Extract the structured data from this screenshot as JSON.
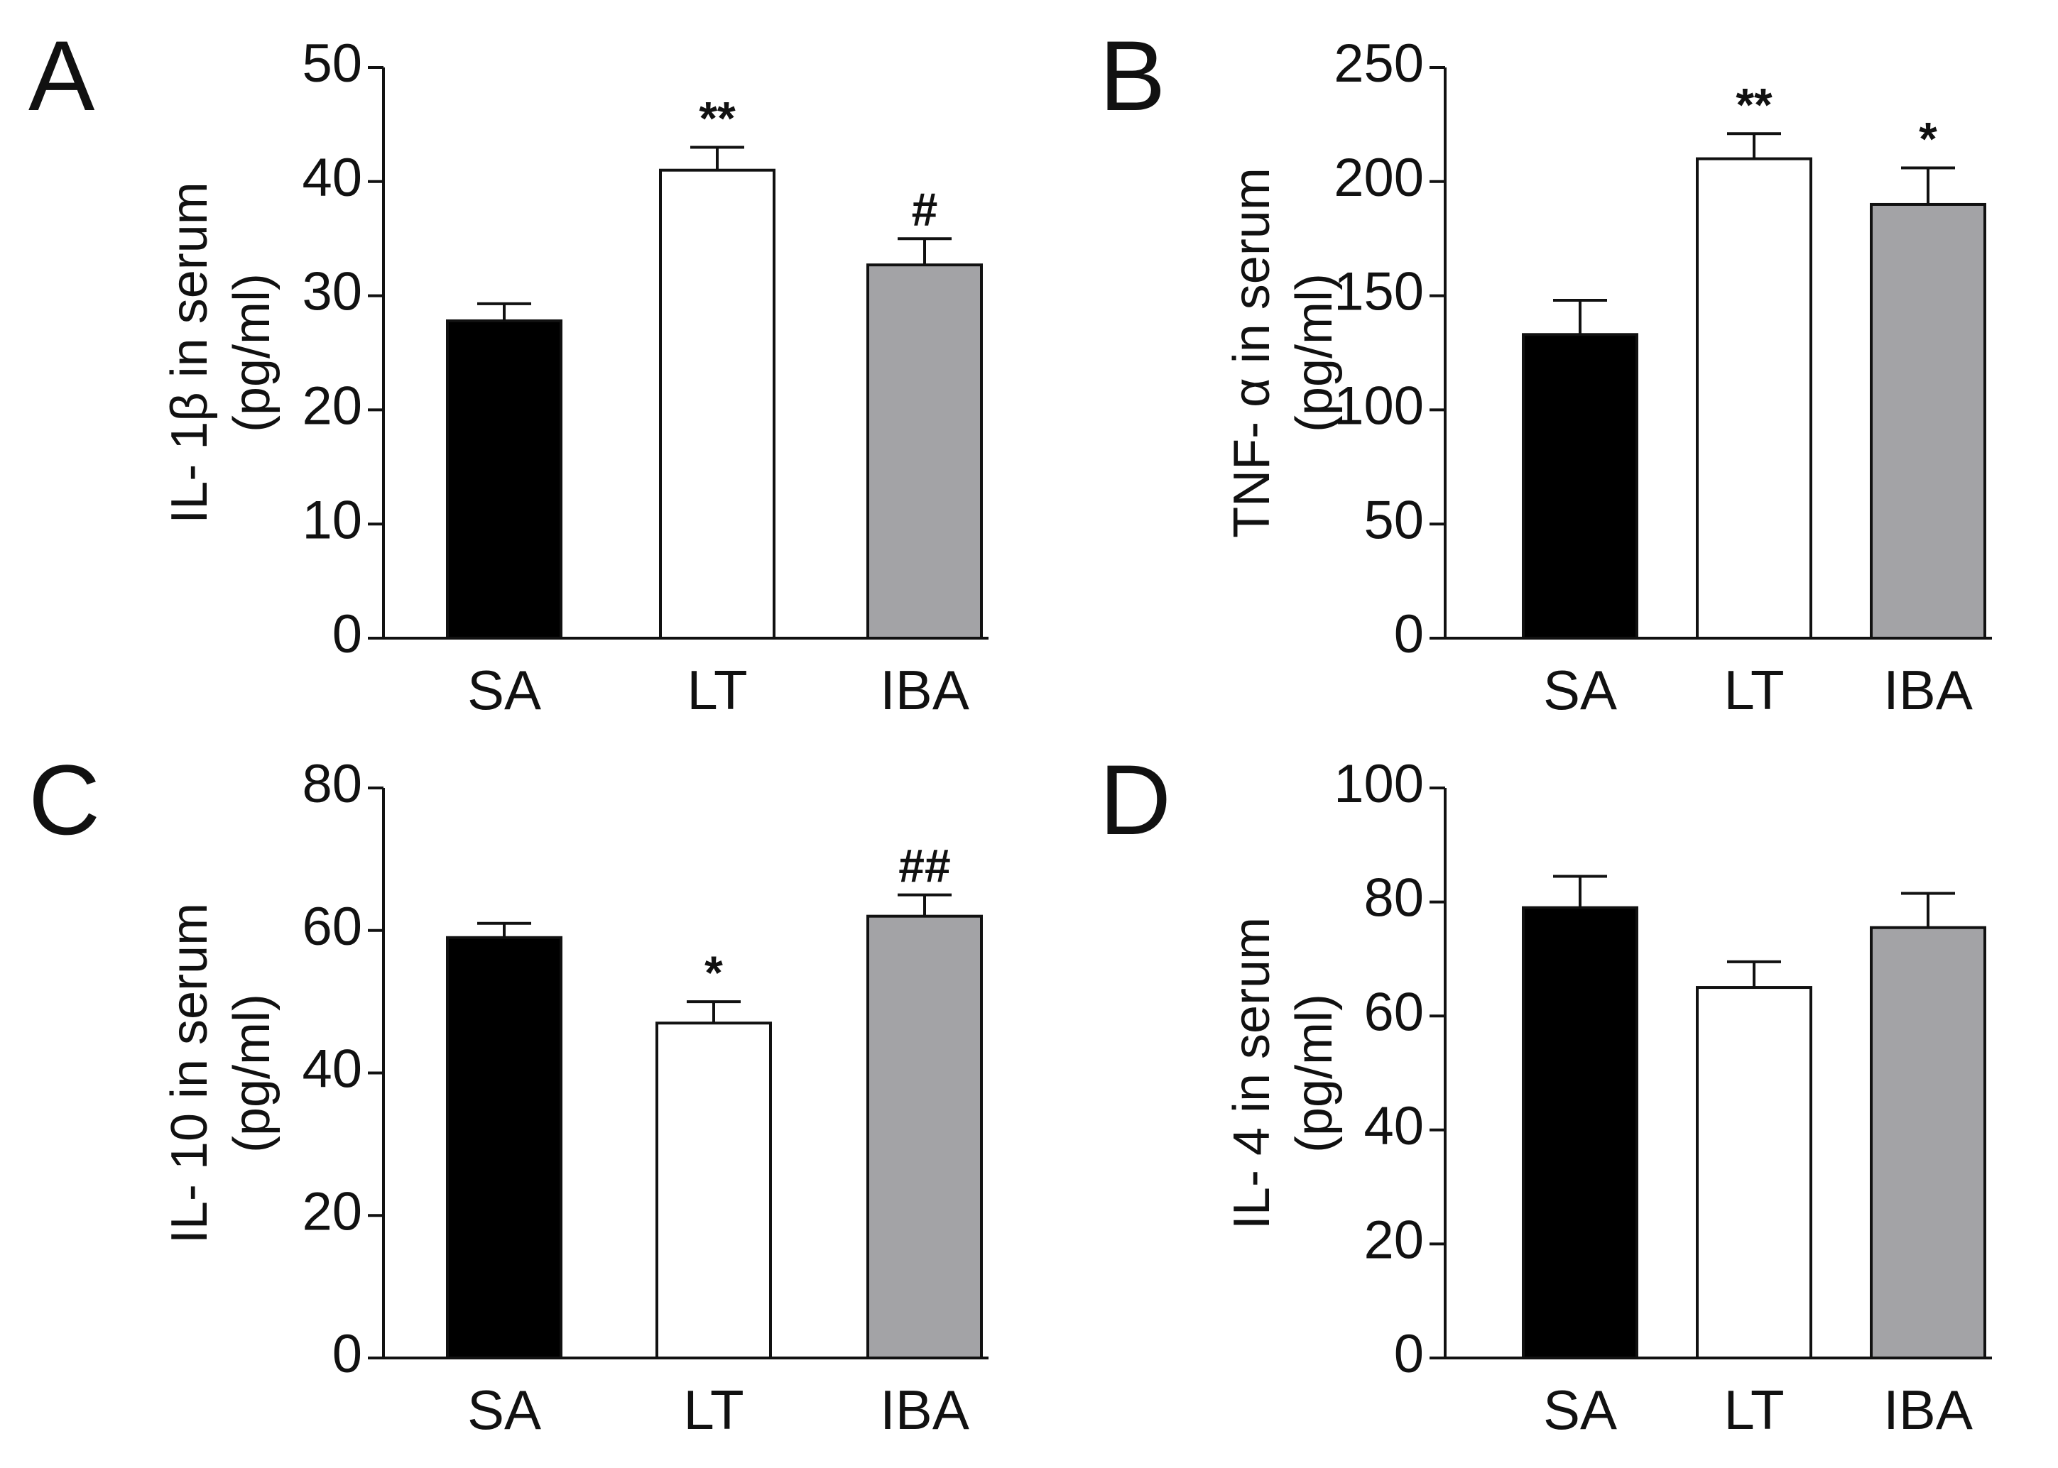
{
  "figure": {
    "panel_letters": [
      "A",
      "B",
      "C",
      "D"
    ]
  },
  "chart_data": [
    {
      "panel": "A",
      "type": "bar",
      "categories": [
        "SA",
        "LT",
        "IBA"
      ],
      "values": [
        27.8,
        41.0,
        32.7
      ],
      "errors": [
        1.5,
        2.0,
        2.3
      ],
      "annotations": [
        "",
        "**",
        "#"
      ],
      "ylabel_lines": [
        "IL- 1β in serum",
        "(pg/ml)"
      ],
      "ylim": [
        0,
        50
      ],
      "yticks": [
        0,
        10,
        20,
        30,
        40,
        50
      ],
      "bar_colors": [
        "#000000",
        "#ffffff",
        "#a3a3a6"
      ]
    },
    {
      "panel": "B",
      "type": "bar",
      "categories": [
        "SA",
        "LT",
        "IBA"
      ],
      "values": [
        133,
        210,
        190
      ],
      "errors": [
        15,
        11,
        16
      ],
      "annotations": [
        "",
        "**",
        "*"
      ],
      "ylabel_lines": [
        "TNF- α in serum",
        "(pg/ml)"
      ],
      "ylim": [
        0,
        250
      ],
      "yticks": [
        0,
        50,
        100,
        150,
        200,
        250
      ],
      "bar_colors": [
        "#000000",
        "#ffffff",
        "#a3a3a6"
      ]
    },
    {
      "panel": "C",
      "type": "bar",
      "categories": [
        "SA",
        "LT",
        "IBA"
      ],
      "values": [
        59,
        47,
        62
      ],
      "errors": [
        2.0,
        3.0,
        3.0
      ],
      "annotations": [
        "",
        "*",
        "##"
      ],
      "ylabel_lines": [
        "IL- 10 in serum",
        "(pg/ml)"
      ],
      "ylim": [
        0,
        80
      ],
      "yticks": [
        0,
        20,
        40,
        60,
        80
      ],
      "bar_colors": [
        "#000000",
        "#ffffff",
        "#a3a3a6"
      ]
    },
    {
      "panel": "D",
      "type": "bar",
      "categories": [
        "SA",
        "LT",
        "IBA"
      ],
      "values": [
        79,
        65,
        75.5
      ],
      "errors": [
        5.5,
        4.5,
        6.0
      ],
      "annotations": [
        "",
        "",
        ""
      ],
      "ylabel_lines": [
        "IL- 4 in serum",
        "(pg/ml)"
      ],
      "ylim": [
        0,
        100
      ],
      "yticks": [
        0,
        20,
        40,
        60,
        80,
        100
      ],
      "bar_colors": [
        "#000000",
        "#ffffff",
        "#a3a3a6"
      ]
    }
  ]
}
